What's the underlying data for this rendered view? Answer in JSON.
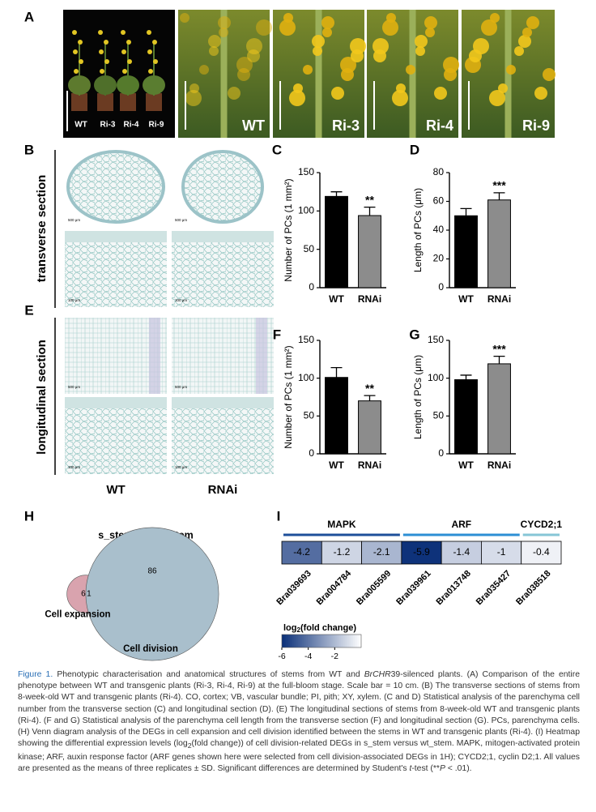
{
  "panel_labels": [
    "A",
    "B",
    "C",
    "D",
    "E",
    "F",
    "G",
    "H",
    "I"
  ],
  "photo_a": {
    "plant_labels": [
      "WT",
      "Ri-3",
      "Ri-4",
      "Ri-9"
    ],
    "closeup_labels": [
      "WT",
      "Ri-3",
      "Ri-4",
      "Ri-9"
    ]
  },
  "sections": {
    "row_labels": [
      "transverse section",
      "longitudinal section"
    ],
    "column_labels": [
      "WT",
      "RNAi"
    ],
    "scale_labels": [
      "500 μm",
      "500 μm",
      "100 μm",
      "100 μm",
      "500 μm",
      "500 μm",
      "100 μm",
      "100 μm"
    ]
  },
  "chart_data": [
    {
      "type": "bar",
      "ylabel": "Number of PCs (1 mm²)",
      "categories": [
        "WT",
        "RNAi"
      ],
      "values": [
        119,
        94
      ],
      "errors": [
        6,
        11
      ],
      "colors": [
        "#000000",
        "#8c8c8c"
      ],
      "ylim": [
        0,
        150
      ],
      "yticks": [
        0,
        50,
        100,
        150
      ],
      "annotation": "**"
    },
    {
      "type": "bar",
      "ylabel": "Length of PCs (μm)",
      "categories": [
        "WT",
        "RNAi"
      ],
      "values": [
        50,
        61
      ],
      "errors": [
        5,
        5
      ],
      "colors": [
        "#000000",
        "#8c8c8c"
      ],
      "ylim": [
        0,
        80
      ],
      "yticks": [
        0,
        20,
        40,
        60,
        80
      ],
      "annotation": "***"
    },
    {
      "type": "bar",
      "ylabel": "Number of PCs (1 mm²)",
      "categories": [
        "WT",
        "RNAi"
      ],
      "values": [
        101,
        70
      ],
      "errors": [
        13,
        7
      ],
      "colors": [
        "#000000",
        "#8c8c8c"
      ],
      "ylim": [
        0,
        150
      ],
      "yticks": [
        0,
        50,
        100,
        150
      ],
      "annotation": "**"
    },
    {
      "type": "bar",
      "ylabel": "Length of PCs (μm)",
      "categories": [
        "WT",
        "RNAi"
      ],
      "values": [
        98,
        119
      ],
      "errors": [
        6,
        10
      ],
      "colors": [
        "#000000",
        "#8c8c8c"
      ],
      "ylim": [
        0,
        150
      ],
      "yticks": [
        0,
        50,
        100,
        150
      ],
      "annotation": "***"
    },
    {
      "type": "venn",
      "title": "s_stem vs. wt_stem",
      "sets": [
        "Cell expansion",
        "Cell division"
      ],
      "values": [
        6,
        1,
        86
      ],
      "colors": [
        "#d9a3ae",
        "#a9bfcc"
      ]
    },
    {
      "type": "heatmap",
      "categories": [
        "Bra039693",
        "Bra004784",
        "Bra005599",
        "Bra039961",
        "Bra013748",
        "Bra035427",
        "Bra038518"
      ],
      "category_groups": [
        "MAPK",
        "MAPK",
        "MAPK",
        "ARF",
        "ARF",
        "ARF",
        "CYCD2;1"
      ],
      "group_colors": [
        "#1d4f9a",
        "#2c8fd4",
        "#86c6d6"
      ],
      "values": [
        -4.2,
        -1.2,
        -2.1,
        -5.9,
        -1.4,
        -1.0,
        -0.4
      ],
      "colors": [
        "#0a2f78",
        "#ffffff"
      ],
      "clim": [
        -6,
        0
      ],
      "colorbar_title": [
        "log",
        "2",
        "(fold change)"
      ],
      "cticks": [
        -6,
        -4,
        -2
      ]
    }
  ],
  "caption": [
    {
      "t": "Figure 1.",
      "s": "fig"
    },
    {
      "t": " Phenotypic characterisation and anatomical structures of stems from WT and "
    },
    {
      "t": "BrCHR",
      "s": "i"
    },
    {
      "t": "39-silenced plants. (A) Comparison of the entire phenotype between WT and transgenic plants (Ri-3, Ri-4, Ri-9) at the full-bloom stage. Scale bar = 10 cm. (B) The transverse sections of stems from 8-week-old WT and transgenic plants (Ri-4). CO, cortex; VB, vascular bundle; PI, pith; XY, xylem. (C and D) Statistical analysis of the parenchyma cell number from the transverse section (C) and longitudinal section (D). (E) The longitudinal sections of stems from 8-week-old WT and transgenic plants (Ri-4). (F and G) Statistical analysis of the parenchyma cell length from the transverse section (F) and longitudinal section (G). PCs, parenchyma cells. (H) Venn diagram analysis of the DEGs in cell expansion and cell division identified between the stems in WT and transgenic plants (Ri-4). (I) Heatmap showing the differential expression levels (log"
    },
    {
      "t": "2",
      "s": "sub"
    },
    {
      "t": "(fold change)) of cell division-related DEGs in s_stem versus wt_stem. MAPK, mitogen-activated protein kinase; ARF, auxin response factor (ARF genes shown here were selected from cell division-associated DEGs in 1H); CYCD2;1, cyclin D2;1. All values are presented as the means of three replicates ± SD. Significant differences are determined by Student's "
    },
    {
      "t": "t",
      "s": "i"
    },
    {
      "t": "-test (**"
    },
    {
      "t": "P",
      "s": "i"
    },
    {
      "t": " < .01)."
    }
  ]
}
